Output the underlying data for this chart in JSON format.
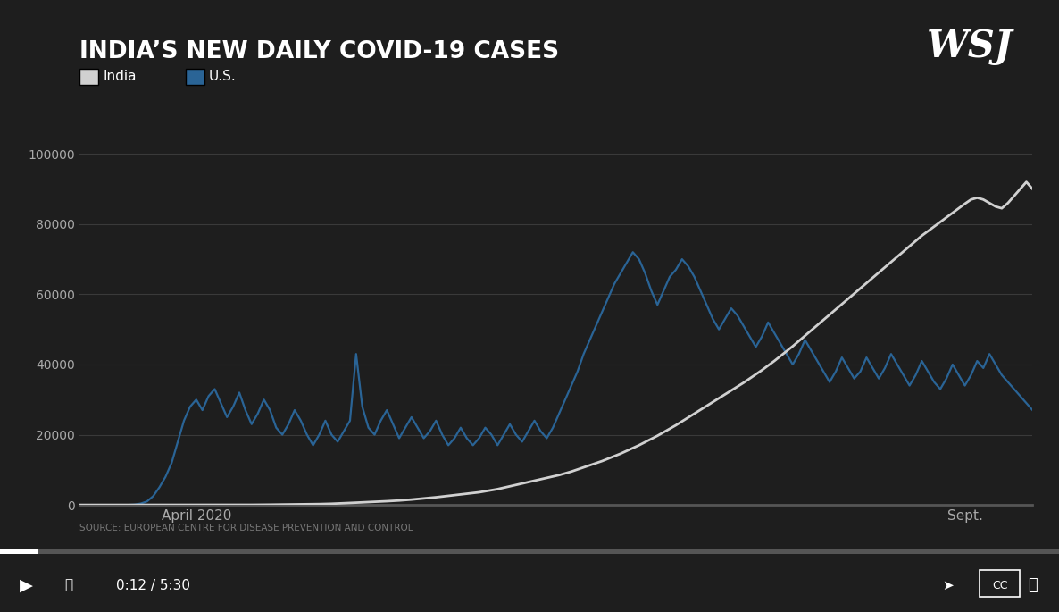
{
  "title": "INDIA’S NEW DAILY COVID-19 CASES",
  "wsj_logo": "WSJ",
  "india_legend_label": "India",
  "us_legend_label": "U.S.",
  "source_text": "SOURCE: EUROPEAN CENTRE FOR DISEASE PREVENTION AND CONTROL",
  "yticks": [
    0,
    20000,
    40000,
    60000,
    80000,
    100000
  ],
  "xtick_april": "April 2020",
  "xtick_sept": "Sept.",
  "background_color": "#1e1e1e",
  "plot_bg_color": "#1e1e1e",
  "grid_color": "#3a3a3a",
  "title_color": "#ffffff",
  "tick_color": "#aaaaaa",
  "axis_color": "#555555",
  "india_color": "#d0d0d0",
  "us_color": "#2a6496",
  "ylim_max": 102000,
  "time_text": "0:12 / 5:30",
  "india_data": [
    0,
    0,
    0,
    0,
    0,
    0,
    0,
    0,
    0,
    0,
    0,
    0,
    0,
    0,
    0,
    0,
    0,
    0,
    1,
    1,
    2,
    3,
    5,
    7,
    10,
    14,
    18,
    22,
    28,
    35,
    50,
    70,
    90,
    110,
    130,
    150,
    170,
    190,
    210,
    240,
    280,
    330,
    400,
    480,
    560,
    640,
    720,
    800,
    880,
    970,
    1050,
    1150,
    1250,
    1380,
    1520,
    1680,
    1840,
    2000,
    2180,
    2380,
    2600,
    2800,
    3000,
    3200,
    3400,
    3600,
    3900,
    4200,
    4500,
    4900,
    5300,
    5700,
    6100,
    6500,
    6900,
    7300,
    7700,
    8100,
    8500,
    9000,
    9500,
    10100,
    10700,
    11300,
    11900,
    12500,
    13200,
    13900,
    14600,
    15400,
    16200,
    17000,
    17900,
    18800,
    19700,
    20700,
    21700,
    22700,
    23800,
    24900,
    26000,
    27100,
    28200,
    29300,
    30400,
    31500,
    32600,
    33700,
    34800,
    36000,
    37200,
    38400,
    39700,
    41000,
    42400,
    43800,
    45200,
    46700,
    48200,
    49700,
    51200,
    52700,
    54200,
    55700,
    57200,
    58700,
    60200,
    61700,
    63200,
    64700,
    66200,
    67700,
    69200,
    70700,
    72200,
    73700,
    75200,
    76700,
    78000,
    79300,
    80600,
    81900,
    83200,
    84500,
    85800,
    87000,
    87500,
    87000,
    86000,
    85000,
    84500,
    86000,
    88000,
    90000,
    92000,
    90000
  ],
  "us_data": [
    0,
    0,
    0,
    0,
    0,
    0,
    0,
    0,
    0,
    100,
    400,
    1000,
    2500,
    5000,
    8000,
    12000,
    18000,
    24000,
    28000,
    30000,
    27000,
    31000,
    33000,
    29000,
    25000,
    28000,
    32000,
    27000,
    23000,
    26000,
    30000,
    27000,
    22000,
    20000,
    23000,
    27000,
    24000,
    20000,
    17000,
    20000,
    24000,
    20000,
    18000,
    21000,
    24000,
    43000,
    28000,
    22000,
    20000,
    24000,
    27000,
    23000,
    19000,
    22000,
    25000,
    22000,
    19000,
    21000,
    24000,
    20000,
    17000,
    19000,
    22000,
    19000,
    17000,
    19000,
    22000,
    20000,
    17000,
    20000,
    23000,
    20000,
    18000,
    21000,
    24000,
    21000,
    19000,
    22000,
    26000,
    30000,
    34000,
    38000,
    43000,
    47000,
    51000,
    55000,
    59000,
    63000,
    66000,
    69000,
    72000,
    70000,
    66000,
    61000,
    57000,
    61000,
    65000,
    67000,
    70000,
    68000,
    65000,
    61000,
    57000,
    53000,
    50000,
    53000,
    56000,
    54000,
    51000,
    48000,
    45000,
    48000,
    52000,
    49000,
    46000,
    43000,
    40000,
    43000,
    47000,
    44000,
    41000,
    38000,
    35000,
    38000,
    42000,
    39000,
    36000,
    38000,
    42000,
    39000,
    36000,
    39000,
    43000,
    40000,
    37000,
    34000,
    37000,
    41000,
    38000,
    35000,
    33000,
    36000,
    40000,
    37000,
    34000,
    37000,
    41000,
    39000,
    43000,
    40000,
    37000,
    35000,
    33000,
    31000,
    29000,
    27000
  ]
}
